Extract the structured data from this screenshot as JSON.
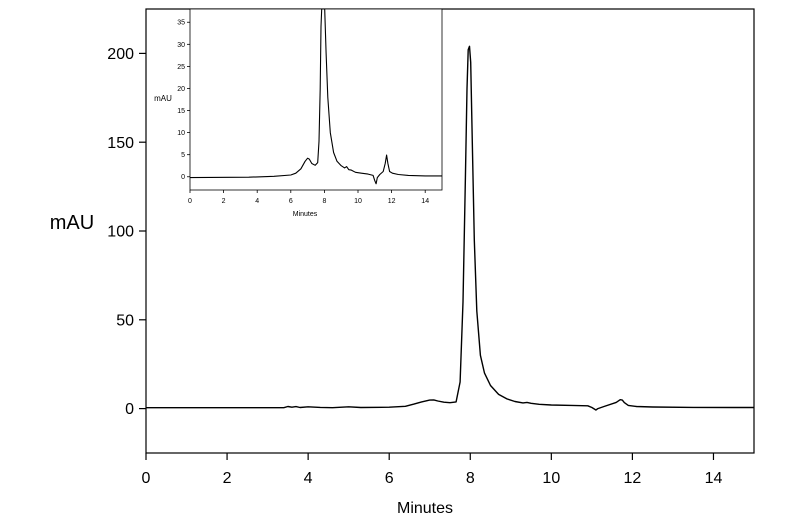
{
  "chart_data": [
    {
      "type": "line",
      "panel": "main",
      "xlabel": "Minutes",
      "ylabel": "mAU",
      "xlim": [
        0,
        15
      ],
      "ylim": [
        -25,
        225
      ],
      "xticks": [
        0,
        2,
        4,
        6,
        8,
        10,
        12,
        14
      ],
      "xtick_labels": [
        "0",
        "2",
        "4",
        "6",
        "8",
        "10",
        "12",
        "14"
      ],
      "yticks": [
        0,
        50,
        100,
        150,
        200
      ],
      "ytick_labels": [
        "0",
        "50",
        "100",
        "150",
        "200"
      ],
      "grid": false,
      "line_color": "#000000",
      "series": [
        {
          "x": [
            0,
            3.4,
            3.5,
            3.6,
            3.7,
            3.8,
            4.0,
            4.3,
            4.6,
            5.0,
            5.3,
            6.0,
            6.4,
            6.6,
            6.8,
            7.0,
            7.1,
            7.2,
            7.35,
            7.5,
            7.65,
            7.75,
            7.82,
            7.88,
            7.92,
            7.95,
            7.98,
            8.01,
            8.05,
            8.1,
            8.16,
            8.25,
            8.35,
            8.5,
            8.7,
            8.9,
            9.1,
            9.3,
            9.4,
            9.5,
            9.7,
            10.0,
            10.5,
            10.9,
            11.0,
            11.1,
            11.15,
            11.3,
            11.6,
            11.7,
            11.75,
            11.8,
            11.9,
            12.1,
            12.5,
            13.5,
            14.5,
            15
          ],
          "y": [
            0.5,
            0.5,
            1.2,
            0.8,
            1.1,
            0.6,
            1.0,
            0.7,
            0.5,
            1.0,
            0.6,
            0.8,
            1.3,
            2.5,
            3.8,
            4.8,
            4.9,
            4.3,
            3.6,
            3.3,
            3.8,
            15,
            60,
            130,
            180,
            202,
            204,
            195,
            150,
            95,
            55,
            30,
            20,
            13,
            8,
            5.5,
            4,
            3.2,
            3.5,
            3.0,
            2.4,
            2.0,
            1.8,
            1.6,
            0.6,
            -0.8,
            0.0,
            1.2,
            3.5,
            5.0,
            4.8,
            3.4,
            1.8,
            1.2,
            0.9,
            0.7,
            0.6,
            0.6
          ]
        }
      ]
    },
    {
      "type": "line",
      "panel": "inset",
      "xlabel": "Minutes",
      "ylabel": "mAU",
      "xlim": [
        0,
        15
      ],
      "ylim": [
        -3,
        38
      ],
      "xticks": [
        0,
        2,
        4,
        6,
        8,
        10,
        12,
        14
      ],
      "xtick_labels": [
        "0",
        "2",
        "4",
        "6",
        "8",
        "10",
        "12",
        "14"
      ],
      "yticks": [
        0,
        5,
        10,
        15,
        20,
        25,
        30,
        35
      ],
      "ytick_labels": [
        "0",
        "5",
        "10",
        "15",
        "20",
        "25",
        "30",
        "35"
      ],
      "grid": false,
      "line_color": "#000000",
      "series": [
        {
          "x": [
            0,
            3.5,
            5.0,
            6.0,
            6.3,
            6.6,
            6.85,
            7.0,
            7.1,
            7.25,
            7.45,
            7.6,
            7.68,
            7.75,
            7.8,
            7.84,
            7.9,
            8.02,
            8.1,
            8.2,
            8.35,
            8.55,
            8.75,
            9.0,
            9.2,
            9.32,
            9.45,
            9.6,
            9.85,
            10.2,
            10.6,
            10.9,
            11.0,
            11.08,
            11.15,
            11.3,
            11.5,
            11.62,
            11.7,
            11.78,
            11.88,
            12.05,
            12.4,
            13.0,
            14.0,
            15
          ],
          "y": [
            -0.2,
            -0.1,
            0.1,
            0.4,
            0.8,
            1.8,
            3.5,
            4.2,
            4.0,
            3.0,
            2.6,
            3.2,
            8,
            20,
            34,
            40,
            40,
            40,
            28,
            18,
            10,
            5.5,
            3.5,
            2.5,
            2.0,
            2.3,
            1.6,
            1.5,
            1.0,
            0.8,
            0.6,
            0.3,
            -0.9,
            -1.6,
            -0.2,
            0.5,
            1.2,
            3.0,
            4.9,
            3.0,
            1.2,
            0.8,
            0.5,
            0.3,
            0.2,
            0.2
          ]
        }
      ]
    }
  ]
}
